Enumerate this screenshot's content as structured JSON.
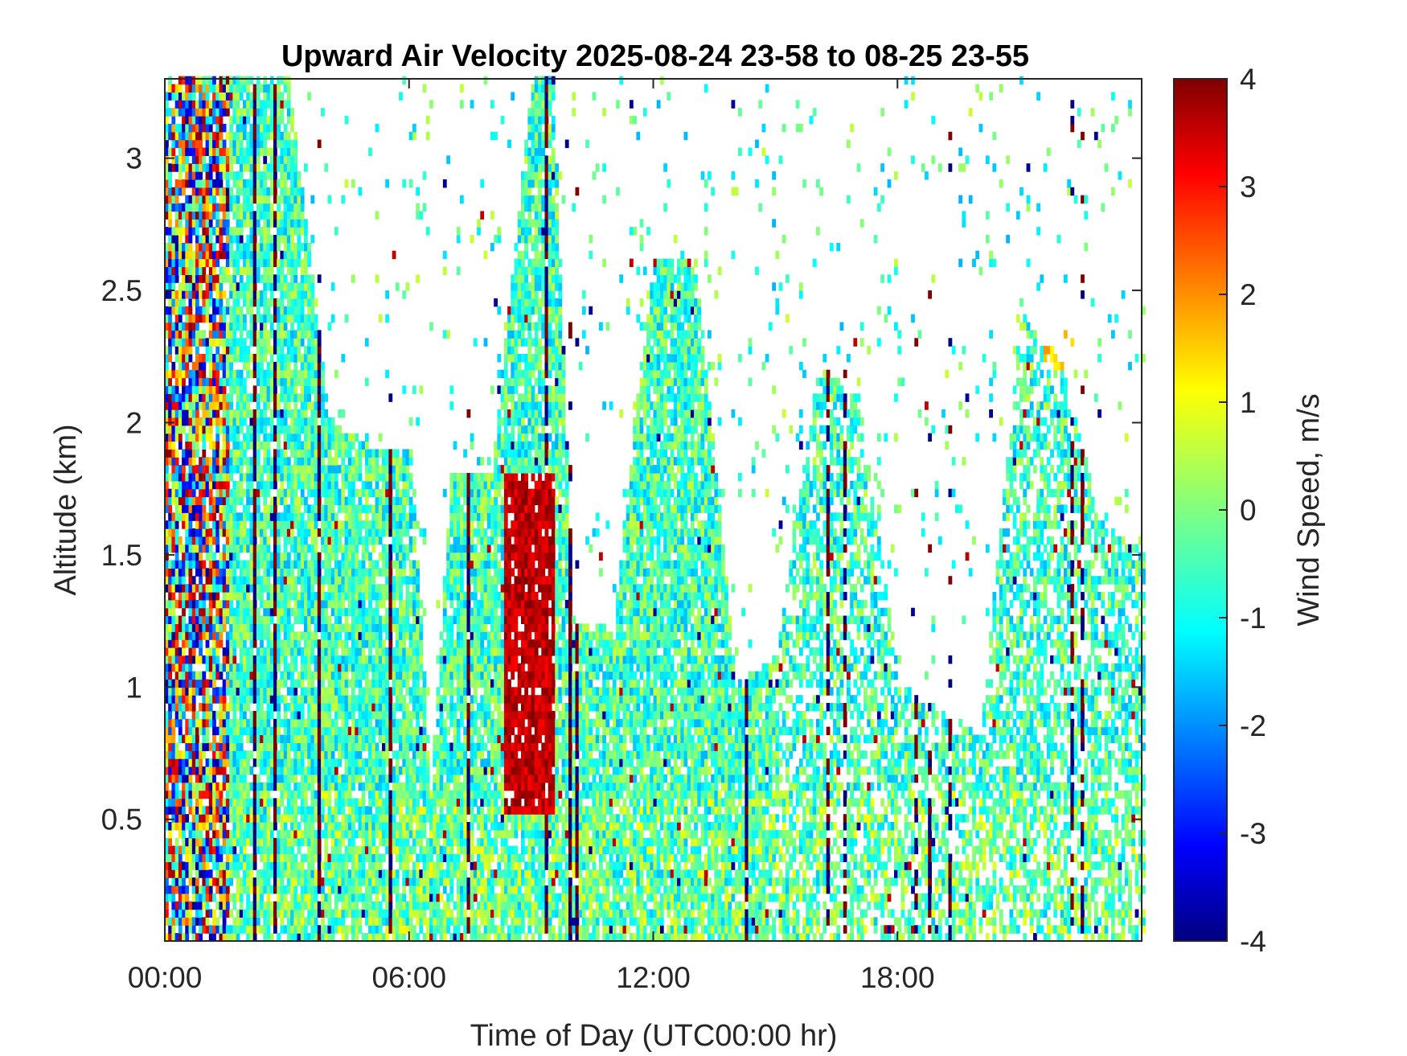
{
  "chart_data": {
    "type": "heatmap",
    "title": "Upward Air Velocity 2025-08-24 23-58 to 08-25 23-55",
    "xlabel": "Time of Day (UTC00:00 hr)",
    "ylabel": "Altitude (km)",
    "xlim_hours": [
      0,
      24
    ],
    "ylim_km": [
      0.04,
      3.3
    ],
    "x_ticks": [
      {
        "value": 0,
        "label": "00:00"
      },
      {
        "value": 6,
        "label": "06:00"
      },
      {
        "value": 12,
        "label": "12:00"
      },
      {
        "value": 18,
        "label": "18:00"
      }
    ],
    "y_ticks": [
      {
        "value": 0.5,
        "label": "0.5"
      },
      {
        "value": 1,
        "label": "1"
      },
      {
        "value": 1.5,
        "label": "1.5"
      },
      {
        "value": 2,
        "label": "2"
      },
      {
        "value": 2.5,
        "label": "2.5"
      },
      {
        "value": 3,
        "label": "3"
      }
    ],
    "colorbar": {
      "label": "Wind Speed, m/s",
      "colormap": "jet",
      "clim": [
        -4,
        4
      ],
      "ticks": [
        {
          "value": 4,
          "label": "4"
        },
        {
          "value": 3,
          "label": "3"
        },
        {
          "value": 2,
          "label": "2"
        },
        {
          "value": 1,
          "label": "1"
        },
        {
          "value": 0,
          "label": "0"
        },
        {
          "value": -1,
          "label": "-1"
        },
        {
          "value": -2,
          "label": "-2"
        },
        {
          "value": -3,
          "label": "-3"
        },
        {
          "value": -4,
          "label": "-4"
        }
      ]
    },
    "time_step_minutes": 5,
    "altitude_step_km": 0.03,
    "data_top_km_by_hour": [
      {
        "hour": 0,
        "top_km": 3.3
      },
      {
        "hour": 1,
        "top_km": 3.3
      },
      {
        "hour": 2,
        "top_km": 3.3
      },
      {
        "hour": 3,
        "top_km": 3.3
      },
      {
        "hour": 4,
        "top_km": 2.0
      },
      {
        "hour": 5,
        "top_km": 1.9
      },
      {
        "hour": 6,
        "top_km": 1.9
      },
      {
        "hour": 6.5,
        "top_km": 0.6
      },
      {
        "hour": 7,
        "top_km": 1.8
      },
      {
        "hour": 8,
        "top_km": 1.8
      },
      {
        "hour": 9,
        "top_km": 3.3
      },
      {
        "hour": 9.5,
        "top_km": 3.3
      },
      {
        "hour": 10,
        "top_km": 1.25
      },
      {
        "hour": 11,
        "top_km": 1.2
      },
      {
        "hour": 11.5,
        "top_km": 2.0
      },
      {
        "hour": 12,
        "top_km": 2.6
      },
      {
        "hour": 13,
        "top_km": 2.6
      },
      {
        "hour": 14,
        "top_km": 1.0
      },
      {
        "hour": 15,
        "top_km": 1.1
      },
      {
        "hour": 16,
        "top_km": 2.2
      },
      {
        "hour": 17,
        "top_km": 2.1
      },
      {
        "hour": 18,
        "top_km": 1.0
      },
      {
        "hour": 20,
        "top_km": 0.8
      },
      {
        "hour": 21,
        "top_km": 2.4
      },
      {
        "hour": 22,
        "top_km": 2.2
      },
      {
        "hour": 23,
        "top_km": 1.6
      },
      {
        "hour": 24,
        "top_km": 1.5
      }
    ],
    "typical_value_ms": -0.5,
    "notable_features": [
      {
        "hours": [
          0,
          1.5
        ],
        "altitude_km": [
          0.04,
          3.3
        ],
        "value_range_ms": [
          -4,
          4
        ]
      },
      {
        "hours": [
          8.3,
          9.5
        ],
        "altitude_km": [
          0.5,
          1.8
        ],
        "value_range_ms": [
          3,
          4
        ]
      },
      {
        "hours": [
          21.5,
          22.3
        ],
        "altitude_km": [
          2.2,
          2.4
        ],
        "value_range_ms": [
          1,
          2
        ]
      }
    ]
  }
}
